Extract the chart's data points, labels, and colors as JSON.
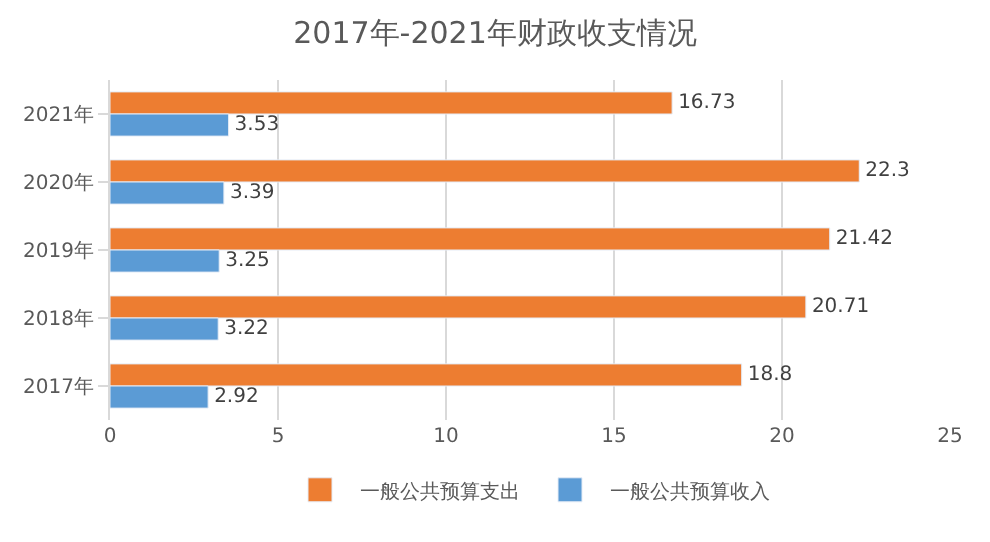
{
  "chart_data": {
    "type": "bar",
    "orientation": "horizontal",
    "title": "2017年-2021年财政收支情况",
    "categories": [
      "2021年",
      "2020年",
      "2019年",
      "2018年",
      "2017年"
    ],
    "series": [
      {
        "name": "一般公共预算支出",
        "color": "#ed7d31",
        "values": [
          16.73,
          22.3,
          21.42,
          20.71,
          18.8
        ]
      },
      {
        "name": "一般公共预算收入",
        "color": "#5b9bd5",
        "values": [
          3.53,
          3.39,
          3.25,
          3.22,
          2.92
        ]
      }
    ],
    "xlim": [
      0,
      25
    ],
    "xticks": [
      0,
      5,
      10,
      15,
      20,
      25
    ],
    "grid": "x",
    "legend": "bottom",
    "data_labels": true
  }
}
